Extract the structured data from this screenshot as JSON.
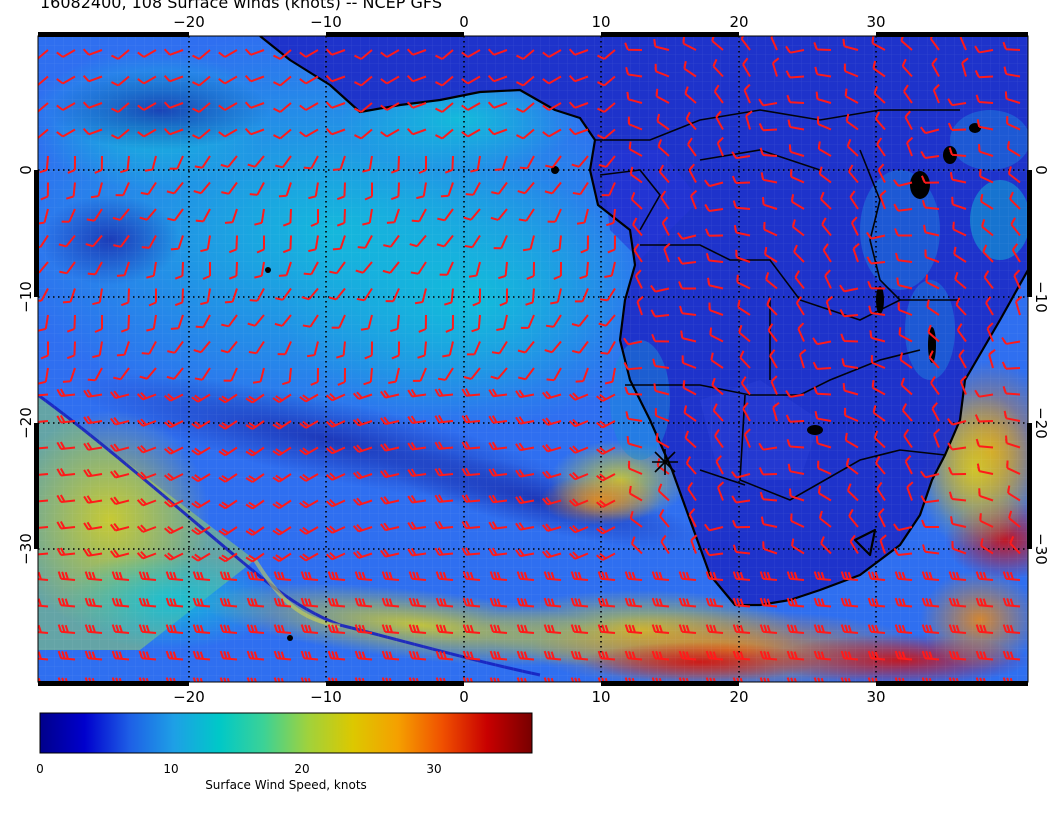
{
  "title": "16082400, 108 Surface winds (knots) -- NCEP GFS",
  "axes": {
    "lon_ticks": [
      -20,
      -10,
      0,
      10,
      20,
      30
    ],
    "lon_labels": [
      "−20",
      "−10",
      "0",
      "10",
      "20",
      "30"
    ],
    "lat_ticks": [
      0,
      -10,
      -20,
      -30
    ],
    "lat_labels": [
      "0",
      "−10",
      "−20",
      "−30"
    ],
    "lon_range": [
      -30,
      41.5
    ],
    "lat_range": [
      9.5,
      -40.5
    ]
  },
  "colorbar": {
    "label": "Surface Wind Speed, knots",
    "ticks": [
      0,
      10,
      20,
      30
    ],
    "tick_labels": [
      "0",
      "10",
      "20",
      "30"
    ],
    "range": [
      0,
      37.5
    ],
    "colors": [
      "#00008b",
      "#0000cd",
      "#1e5fe6",
      "#1ea0e6",
      "#00c8c8",
      "#3cd296",
      "#a0d23c",
      "#dcc800",
      "#f5a000",
      "#f05000",
      "#c80000",
      "#780000"
    ]
  },
  "map": {
    "barb_color": "#ff1a1a",
    "coast_color": "#000000"
  }
}
